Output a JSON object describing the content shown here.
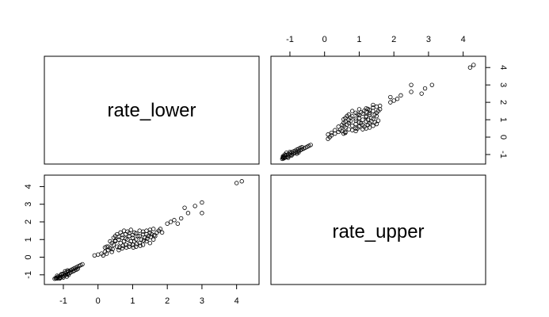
{
  "chart_data": {
    "type": "scatter",
    "layout": "pairs-matrix",
    "variables": [
      "rate_lower",
      "rate_upper"
    ],
    "diagonal_labels": [
      "rate_lower",
      "rate_upper"
    ],
    "axis_range": [
      -1.3,
      4.4
    ],
    "ticks": [
      -1,
      0,
      1,
      2,
      3,
      4
    ],
    "tick_labels": [
      "-1",
      "0",
      "1",
      "2",
      "3",
      "4"
    ],
    "marker": "open-circle",
    "grid": false,
    "points": [
      [
        -1.25,
        -1.22
      ],
      [
        -1.22,
        -1.18
      ],
      [
        -1.2,
        -1.2
      ],
      [
        -1.18,
        -1.15
      ],
      [
        -1.16,
        -1.2
      ],
      [
        -1.15,
        -1.1
      ],
      [
        -1.12,
        -1.18
      ],
      [
        -1.1,
        -1.05
      ],
      [
        -1.08,
        -1.15
      ],
      [
        -1.05,
        -1.0
      ],
      [
        -1.03,
        -1.1
      ],
      [
        -1.0,
        -0.95
      ],
      [
        -0.98,
        -1.05
      ],
      [
        -0.95,
        -0.9
      ],
      [
        -0.93,
        -1.0
      ],
      [
        -0.9,
        -0.85
      ],
      [
        -0.88,
        -0.95
      ],
      [
        -0.85,
        -0.8
      ],
      [
        -0.82,
        -0.9
      ],
      [
        -0.8,
        -0.75
      ],
      [
        -0.78,
        -0.85
      ],
      [
        -0.75,
        -0.7
      ],
      [
        -0.72,
        -0.8
      ],
      [
        -0.7,
        -0.65
      ],
      [
        -0.68,
        -0.75
      ],
      [
        -0.65,
        -0.6
      ],
      [
        -0.62,
        -0.7
      ],
      [
        -0.6,
        -0.55
      ],
      [
        -0.58,
        -0.65
      ],
      [
        -0.55,
        -0.5
      ],
      [
        -0.5,
        -0.45
      ],
      [
        -0.45,
        -0.4
      ],
      [
        -1.1,
        -1.2
      ],
      [
        -1.0,
        -1.15
      ],
      [
        -0.9,
        -1.1
      ],
      [
        -0.85,
        -1.0
      ],
      [
        -1.18,
        -1.05
      ],
      [
        -1.05,
        -0.95
      ],
      [
        -0.95,
        -0.8
      ],
      [
        -0.88,
        -0.75
      ],
      [
        -0.1,
        0.1
      ],
      [
        0.0,
        0.15
      ],
      [
        0.1,
        0.2
      ],
      [
        0.15,
        0.1
      ],
      [
        0.2,
        0.3
      ],
      [
        0.25,
        0.2
      ],
      [
        0.3,
        0.4
      ],
      [
        0.3,
        0.6
      ],
      [
        0.35,
        0.5
      ],
      [
        0.4,
        0.8
      ],
      [
        0.4,
        0.3
      ],
      [
        0.45,
        0.7
      ],
      [
        0.5,
        0.9
      ],
      [
        0.5,
        1.2
      ],
      [
        0.55,
        0.6
      ],
      [
        0.6,
        1.0
      ],
      [
        0.6,
        0.4
      ],
      [
        0.65,
        0.8
      ],
      [
        0.7,
        1.1
      ],
      [
        0.7,
        0.5
      ],
      [
        0.75,
        0.9
      ],
      [
        0.8,
        1.3
      ],
      [
        0.8,
        0.7
      ],
      [
        0.85,
        1.0
      ],
      [
        0.9,
        0.6
      ],
      [
        0.9,
        1.2
      ],
      [
        0.95,
        0.9
      ],
      [
        1.0,
        1.1
      ],
      [
        1.0,
        0.7
      ],
      [
        1.05,
        1.4
      ],
      [
        1.05,
        0.9
      ],
      [
        1.1,
        1.0
      ],
      [
        1.1,
        0.6
      ],
      [
        1.15,
        1.2
      ],
      [
        1.2,
        0.8
      ],
      [
        1.2,
        1.5
      ],
      [
        1.25,
        1.0
      ],
      [
        1.3,
        1.3
      ],
      [
        1.3,
        0.7
      ],
      [
        1.35,
        1.1
      ],
      [
        1.4,
        0.9
      ],
      [
        1.4,
        1.5
      ],
      [
        1.45,
        1.2
      ],
      [
        1.5,
        1.4
      ],
      [
        1.5,
        0.8
      ],
      [
        1.55,
        1.3
      ],
      [
        1.6,
        1.0
      ],
      [
        1.6,
        1.6
      ],
      [
        1.65,
        1.2
      ],
      [
        1.7,
        1.4
      ],
      [
        0.55,
        1.3
      ],
      [
        0.65,
        1.4
      ],
      [
        0.75,
        1.5
      ],
      [
        0.85,
        1.45
      ],
      [
        0.95,
        1.55
      ],
      [
        0.45,
        1.1
      ],
      [
        0.35,
        0.9
      ],
      [
        0.25,
        0.6
      ],
      [
        1.75,
        1.5
      ],
      [
        1.8,
        1.6
      ],
      [
        1.85,
        1.4
      ],
      [
        0.2,
        0.55
      ],
      [
        0.42,
        0.45
      ],
      [
        0.62,
        0.55
      ],
      [
        0.72,
        0.65
      ],
      [
        0.82,
        0.55
      ],
      [
        0.92,
        0.75
      ],
      [
        1.02,
        0.55
      ],
      [
        1.12,
        0.75
      ],
      [
        1.22,
        0.65
      ],
      [
        1.32,
        0.95
      ],
      [
        1.42,
        1.05
      ],
      [
        1.52,
        1.15
      ],
      [
        1.62,
        1.25
      ],
      [
        0.5,
        0.95
      ],
      [
        0.6,
        1.15
      ],
      [
        0.7,
        1.25
      ],
      [
        0.8,
        1.05
      ],
      [
        0.9,
        1.35
      ],
      [
        1.0,
        1.25
      ],
      [
        1.1,
        1.35
      ],
      [
        1.2,
        1.2
      ],
      [
        1.3,
        1.45
      ],
      [
        1.4,
        1.3
      ],
      [
        1.5,
        1.55
      ],
      [
        2.0,
        1.9
      ],
      [
        2.1,
        2.0
      ],
      [
        2.2,
        2.1
      ],
      [
        2.3,
        1.9
      ],
      [
        2.4,
        2.2
      ],
      [
        2.5,
        2.8
      ],
      [
        2.6,
        2.5
      ],
      [
        2.8,
        2.9
      ],
      [
        3.0,
        3.1
      ],
      [
        3.0,
        2.5
      ],
      [
        4.0,
        4.2
      ],
      [
        4.15,
        4.3
      ]
    ]
  }
}
